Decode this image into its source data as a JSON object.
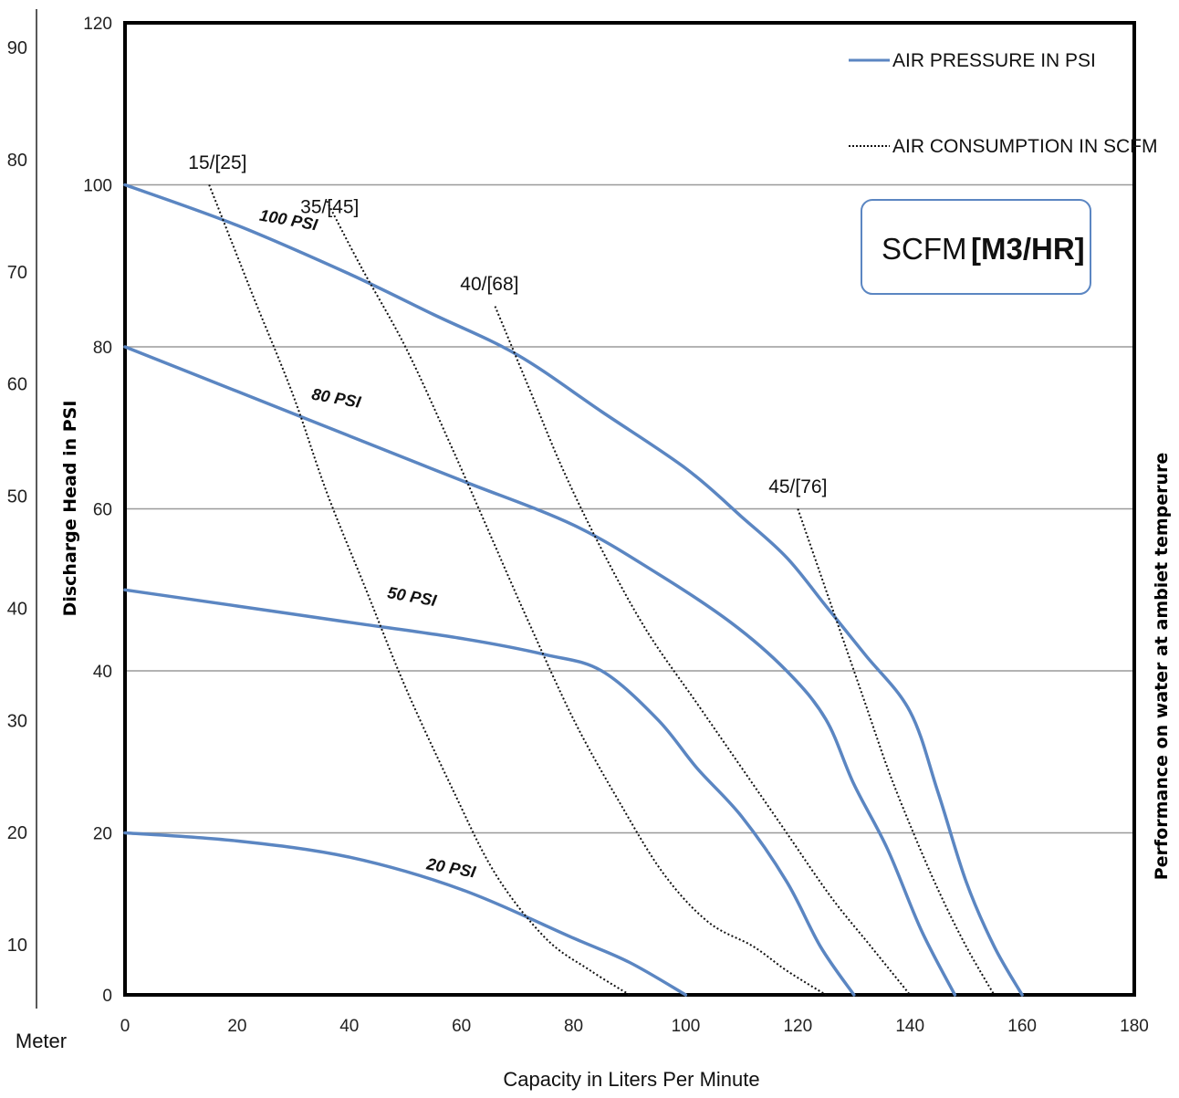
{
  "chart_data": {
    "type": "line",
    "xlabel": "Capacity in Liters Per Minute",
    "ylabel": "Discharge Head in PSI",
    "right_label": "Performance on water at ambiet temperure",
    "meter_axis": {
      "label": "Meter",
      "ticks": [
        10,
        20,
        30,
        40,
        50,
        60,
        70,
        80,
        90
      ]
    },
    "xlim": [
      0,
      180
    ],
    "ylim": [
      0,
      120
    ],
    "x_ticks": [
      0,
      20,
      40,
      60,
      80,
      100,
      120,
      140,
      160,
      180
    ],
    "y_ticks": [
      0,
      20,
      40,
      60,
      80,
      100,
      120
    ],
    "grid": "horizontal",
    "legend": {
      "placement": "top-right",
      "items": [
        {
          "label": "AIR PRESSURE IN PSI",
          "style": "solid",
          "color": "#5b86c2"
        },
        {
          "label": "AIR CONSUMPTION IN SCFM",
          "style": "dotted",
          "color": "#111111"
        }
      ]
    },
    "unit_box": {
      "left": "SCFM",
      "right": "[M3/HR]"
    },
    "series": [
      {
        "name": "100 PSI",
        "style": "solid",
        "color": "#5b86c2",
        "points": [
          [
            0,
            100
          ],
          [
            20,
            95
          ],
          [
            40,
            89
          ],
          [
            55,
            84
          ],
          [
            70,
            79
          ],
          [
            85,
            72
          ],
          [
            100,
            65
          ],
          [
            110,
            59
          ],
          [
            118,
            54
          ],
          [
            125,
            48
          ],
          [
            132,
            42
          ],
          [
            140,
            35
          ],
          [
            145,
            25
          ],
          [
            150,
            14
          ],
          [
            155,
            6
          ],
          [
            160,
            0
          ]
        ]
      },
      {
        "name": "80 PSI",
        "style": "solid",
        "color": "#5b86c2",
        "points": [
          [
            0,
            80
          ],
          [
            20,
            74.5
          ],
          [
            40,
            69
          ],
          [
            60,
            63.5
          ],
          [
            80,
            58
          ],
          [
            95,
            52
          ],
          [
            108,
            46
          ],
          [
            118,
            40
          ],
          [
            125,
            34
          ],
          [
            130,
            26
          ],
          [
            136,
            18
          ],
          [
            142,
            8
          ],
          [
            148,
            0
          ]
        ]
      },
      {
        "name": "50 PSI",
        "style": "solid",
        "color": "#5b86c2",
        "points": [
          [
            0,
            50
          ],
          [
            20,
            48
          ],
          [
            40,
            46
          ],
          [
            60,
            44
          ],
          [
            75,
            42
          ],
          [
            85,
            40
          ],
          [
            95,
            34
          ],
          [
            102,
            28
          ],
          [
            110,
            22
          ],
          [
            118,
            14
          ],
          [
            124,
            6
          ],
          [
            130,
            0
          ]
        ]
      },
      {
        "name": "20 PSI",
        "style": "solid",
        "color": "#5b86c2",
        "points": [
          [
            0,
            20
          ],
          [
            20,
            19
          ],
          [
            40,
            17
          ],
          [
            60,
            13
          ],
          [
            80,
            7
          ],
          [
            90,
            4
          ],
          [
            100,
            0
          ]
        ]
      },
      {
        "name": "15/[25]",
        "style": "dotted",
        "color": "#111111",
        "points": [
          [
            15,
            100
          ],
          [
            23,
            86
          ],
          [
            30,
            74
          ],
          [
            36,
            62
          ],
          [
            43,
            50
          ],
          [
            50,
            38
          ],
          [
            58,
            26
          ],
          [
            66,
            15
          ],
          [
            75,
            7
          ],
          [
            83,
            3
          ],
          [
            90,
            0
          ]
        ]
      },
      {
        "name": "35/[45]",
        "style": "dotted",
        "color": "#111111",
        "points": [
          [
            36,
            98
          ],
          [
            42,
            90
          ],
          [
            50,
            80
          ],
          [
            58,
            68
          ],
          [
            65,
            57
          ],
          [
            72,
            46
          ],
          [
            80,
            34
          ],
          [
            88,
            24
          ],
          [
            96,
            15
          ],
          [
            104,
            9
          ],
          [
            112,
            6
          ],
          [
            118,
            3
          ],
          [
            125,
            0
          ]
        ]
      },
      {
        "name": "40/[68]",
        "style": "dotted",
        "color": "#111111",
        "points": [
          [
            66,
            85
          ],
          [
            72,
            75
          ],
          [
            78,
            65
          ],
          [
            85,
            55
          ],
          [
            93,
            45
          ],
          [
            102,
            36
          ],
          [
            110,
            28
          ],
          [
            118,
            20
          ],
          [
            126,
            12
          ],
          [
            133,
            6
          ],
          [
            140,
            0
          ]
        ]
      },
      {
        "name": "45/[76]",
        "style": "dotted",
        "color": "#111111",
        "points": [
          [
            120,
            60
          ],
          [
            124,
            52
          ],
          [
            128,
            44
          ],
          [
            132,
            36
          ],
          [
            136,
            28
          ],
          [
            140,
            21
          ],
          [
            145,
            13
          ],
          [
            150,
            6
          ],
          [
            155,
            0
          ]
        ]
      }
    ],
    "curve_labels": [
      {
        "text": "100 PSI",
        "x": 29,
        "y": 95
      },
      {
        "text": "80 PSI",
        "x": 37.5,
        "y": 73
      },
      {
        "text": "50 PSI",
        "x": 51,
        "y": 48.5
      },
      {
        "text": "20 PSI",
        "x": 58,
        "y": 15
      }
    ],
    "consumption_labels": [
      {
        "text": "15/[25]",
        "x": 16.5,
        "y": 102
      },
      {
        "text": "35/[45]",
        "x": 36.5,
        "y": 96.5
      },
      {
        "text": "40/[68]",
        "x": 65,
        "y": 87
      },
      {
        "text": "45/[76]",
        "x": 120,
        "y": 62
      }
    ]
  }
}
